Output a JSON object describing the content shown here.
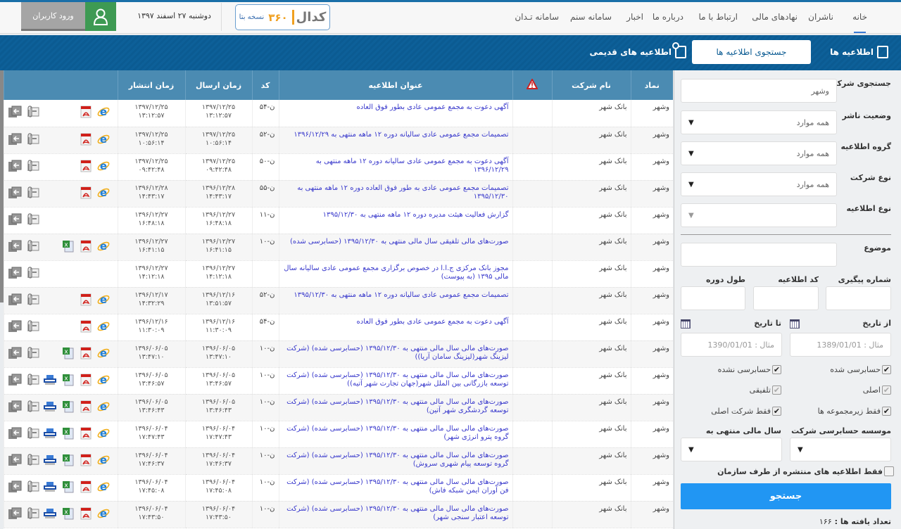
{
  "header": {
    "nav": [
      "خانه",
      "ناشران",
      "نهادهای مالی",
      "ارتباط با ما",
      "درباره ما",
      "اخبار",
      "سامانه سنم",
      "سامانه تـدان"
    ],
    "logo": {
      "brand": "کدال",
      "version": "۳۶۰",
      "beta": "نسخه بتا"
    },
    "date": "دوشنبه ۲۷ اسفند ۱۳۹۷",
    "login_label": "ورود کاربران"
  },
  "tabs": {
    "announcements": "اطلاعیه ها",
    "search": "جستجوی اطلاعیه ها",
    "old": "اطلاعیه های قدیمی"
  },
  "table": {
    "headers": {
      "symbol": "نماد",
      "company": "نام شرکت",
      "title": "عنوان اطلاعیه",
      "code": "کد",
      "sent": "زمان ارسال",
      "published": "زمان انتشار"
    },
    "rows": [
      {
        "symbol": "وشهر",
        "company": "بانک شهر",
        "title": "آگهی دعوت به مجمع عمومی عادی بطور فوق العاده",
        "code": "ن-۵۴",
        "sent": "۱۳۹۷/۱۲/۲۵ ۱۳:۱۲:۵۷",
        "published": "۱۳۹۷/۱۲/۲۵ ۱۳:۱۲:۵۷",
        "icons": [
          "ie",
          "pdf"
        ]
      },
      {
        "symbol": "وشهر",
        "company": "بانک شهر",
        "title": "تصمیمات مجمع عمومی عادی سالیانه دوره ۱۲ ماهه منتهی به ۱۳۹۶/۱۲/۲۹",
        "code": "ن-۵۲",
        "sent": "۱۳۹۷/۱۲/۲۵ ۱۰:۵۶:۱۴",
        "published": "۱۳۹۷/۱۲/۲۵ ۱۰:۵۶:۱۴",
        "icons": [
          "ie",
          "pdf"
        ]
      },
      {
        "symbol": "وشهر",
        "company": "بانک شهر",
        "title": "آگهی دعوت به مجمع عمومی عادی سالیانه دوره ۱۲ ماهه منتهی به ۱۳۹۶/۱۲/۲۹",
        "code": "ن-۵۰",
        "sent": "۱۳۹۷/۱۲/۲۵ ۰۹:۴۲:۴۸",
        "published": "۱۳۹۷/۱۲/۲۵ ۰۹:۴۲:۴۸",
        "icons": [
          "ie",
          "pdf"
        ]
      },
      {
        "symbol": "وشهر",
        "company": "بانک شهر",
        "title": "تصمیمات مجمع عمومی عادی به طور فوق العاده دوره ۱۲ ماهه منتهی به ۱۳۹۵/۱۲/۳۰",
        "code": "ن-۵۵",
        "sent": "۱۳۹۶/۱۲/۲۸ ۱۴:۴۳:۱۷",
        "published": "۱۳۹۶/۱۲/۲۸ ۱۴:۴۳:۱۷",
        "icons": [
          "ie",
          "pdf"
        ]
      },
      {
        "symbol": "وشهر",
        "company": "بانک شهر",
        "title": "گزارش فعالیت هیئت مدیره دوره ۱۲ ماهه منتهی به ۱۳۹۵/۱۲/۳۰",
        "code": "ن-۱۱",
        "sent": "۱۳۹۶/۱۲/۲۷ ۱۶:۴۸:۱۸",
        "published": "۱۳۹۶/۱۲/۲۷ ۱۶:۴۸:۱۸",
        "icons": []
      },
      {
        "symbol": "وشهر",
        "company": "بانک شهر",
        "title": "صورت‌های مالی تلفیقی سال مالی منتهی به ۱۳۹۵/۱۲/۳۰ (حسابرسی شده)",
        "code": "ن-۱۰",
        "sent": "۱۳۹۶/۱۲/۲۷ ۱۶:۴۱:۱۵",
        "published": "۱۳۹۶/۱۲/۲۷ ۱۶:۴۱:۱۵",
        "icons": [
          "ie",
          "pdf",
          "excel"
        ]
      },
      {
        "symbol": "وشهر",
        "company": "بانک شهر",
        "title": "مجوز بانک مرکزی ج.ا.ا در خصوص برگزاری مجمع عمومی عادی سالیانه سال مالی ۱۳۹۵ (به پیوست)",
        "code": "",
        "sent": "۱۳۹۶/۱۲/۲۷ ۱۴:۱۲:۱۸",
        "published": "۱۳۹۶/۱۲/۲۷ ۱۴:۱۲:۱۸",
        "icons": []
      },
      {
        "symbol": "وشهر",
        "company": "بانک شهر",
        "title": "تصمیمات مجمع عمومی عادی سالیانه دوره ۱۲ ماهه منتهی به ۱۳۹۵/۱۲/۳۰",
        "code": "ن-۵۲",
        "sent": "۱۳۹۶/۱۲/۱۶ ۱۳:۵۱:۵۷",
        "published": "۱۳۹۶/۱۲/۱۷ ۱۴:۳۲:۲۹",
        "icons": [
          "ie",
          "pdf"
        ]
      },
      {
        "symbol": "وشهر",
        "company": "بانک شهر",
        "title": "آگهی دعوت به مجمع عمومی عادی بطور فوق العاده",
        "code": "ن-۵۴",
        "sent": "۱۳۹۶/۱۲/۱۶ ۱۱:۳۰:۰۹",
        "published": "۱۳۹۶/۱۲/۱۶ ۱۱:۳۰:۰۹",
        "icons": [
          "ie",
          "pdf"
        ]
      },
      {
        "symbol": "وشهر",
        "company": "بانک شهر",
        "title": "صورت‌های مالی سال مالی منتهی به ۱۳۹۵/۱۲/۳۰ (حسابرسی شده) (شرکت لیزینگ شهر(لیزینگ سامان آریا))",
        "code": "ن-۱۰",
        "sent": "۱۳۹۶/۰۶/۰۵ ۱۳:۴۷:۱۰",
        "published": "۱۳۹۶/۰۶/۰۵ ۱۳:۴۷:۱۰",
        "icons": [
          "ie",
          "pdf",
          "excel"
        ]
      },
      {
        "symbol": "وشهر",
        "company": "بانک شهر",
        "title": "صورت‌های مالی سال مالی منتهی به ۱۳۹۵/۱۲/۳۰ (حسابرسی شده) (شرکت توسعه بازرگانی بین الملل شهر(جهان تجارت شهر آتیه))",
        "code": "ن-۱۰",
        "sent": "۱۳۹۶/۰۶/۰۵ ۱۳:۴۶:۵۷",
        "published": "۱۳۹۶/۰۶/۰۵ ۱۳:۴۶:۵۷",
        "icons": [
          "ie",
          "pdf",
          "excel",
          "xbrl"
        ]
      },
      {
        "symbol": "وشهر",
        "company": "بانک شهر",
        "title": "صورت‌های مالی سال مالی منتهی به ۱۳۹۵/۱۲/۳۰ (حسابرسی شده) (شرکت توسعه گردشگری شهر آتین)",
        "code": "ن-۱۰",
        "sent": "۱۳۹۶/۰۶/۰۵ ۱۳:۴۶:۴۳",
        "published": "۱۳۹۶/۰۶/۰۵ ۱۳:۴۶:۴۳",
        "icons": [
          "ie",
          "pdf",
          "excel",
          "xbrl"
        ]
      },
      {
        "symbol": "وشهر",
        "company": "بانک شهر",
        "title": "صورت‌های مالی سال مالی منتهی به ۱۳۹۵/۱۲/۳۰ (حسابرسی شده) (شرکت گروه پترو انرژی شهر)",
        "code": "ن-۱۰",
        "sent": "۱۳۹۶/۰۶/۰۴ ۱۷:۴۷:۴۳",
        "published": "۱۳۹۶/۰۶/۰۴ ۱۷:۴۷:۴۳",
        "icons": [
          "ie",
          "pdf",
          "excel",
          "xbrl"
        ]
      },
      {
        "symbol": "وشهر",
        "company": "بانک شهر",
        "title": "صورت‌های مالی سال مالی منتهی به ۱۳۹۵/۱۲/۳۰ (حسابرسی شده) (شرکت گروه توسعه پیام شهری سروش)",
        "code": "ن-۱۰",
        "sent": "۱۳۹۶/۰۶/۰۴ ۱۷:۴۶:۳۷",
        "published": "۱۳۹۶/۰۶/۰۴ ۱۷:۴۶:۳۷",
        "icons": [
          "ie",
          "pdf",
          "excel",
          "xbrl"
        ]
      },
      {
        "symbol": "وشهر",
        "company": "بانک شهر",
        "title": "صورت‌های مالی سال مالی منتهی به ۱۳۹۵/۱۲/۳۰ (حسابرسی شده) (شرکت فن آوران ایمن شبکه فاش)",
        "code": "ن-۱۰",
        "sent": "۱۳۹۶/۰۶/۰۴ ۱۷:۴۵:۰۸",
        "published": "۱۳۹۶/۰۶/۰۴ ۱۷:۴۵:۰۸",
        "icons": [
          "ie",
          "pdf",
          "excel",
          "xbrl"
        ]
      },
      {
        "symbol": "وشهر",
        "company": "بانک شهر",
        "title": "صورت‌های مالی سال مالی منتهی به ۱۳۹۵/۱۲/۳۰ (حسابرسی شده) (شرکت توسعه اعتبار سنجی شهر)",
        "code": "ن-۱۰",
        "sent": "۱۳۹۶/۰۶/۰۴ ۱۷:۴۳:۵۰",
        "published": "۱۳۹۶/۰۶/۰۴ ۱۷:۴۳:۵۰",
        "icons": [
          "ie",
          "pdf",
          "excel",
          "xbrl"
        ]
      }
    ]
  },
  "sidebar": {
    "company_search": {
      "label": "جستجوی شرکت",
      "value": "وشهر"
    },
    "publisher_status": {
      "label": "وضعیت ناشر",
      "value": "همه موارد"
    },
    "announcement_group": {
      "label": "گروه اطلاعیه",
      "value": "همه موارد"
    },
    "company_type": {
      "label": "نوع شرکت",
      "value": "همه موارد"
    },
    "announcement_type": {
      "label": "نوع اطلاعیه",
      "value": ""
    },
    "subject": {
      "label": "موضوع",
      "value": ""
    },
    "tracking_no": {
      "label": "شماره پیگیری"
    },
    "announcement_code": {
      "label": "کد اطلاعیه"
    },
    "period_length": {
      "label": "طول دوره"
    },
    "from_date": {
      "label": "از تاریخ",
      "placeholder": "مثال : 1389/01/01"
    },
    "to_date": {
      "label": "تا تاریخ",
      "placeholder": "مثال : 1390/01/01"
    },
    "checks": {
      "audited": {
        "label": "حسابرسی شده",
        "checked": true
      },
      "not_audited": {
        "label": "حسابرسی نشده",
        "checked": true
      },
      "original": {
        "label": "اصلی",
        "checked": true
      },
      "consolidated": {
        "label": "تلفیقی",
        "checked": true
      },
      "subsidiaries_only": {
        "label": "فقط زیرمجموعه ها",
        "checked": true
      },
      "parent_only": {
        "label": "فقط شرکت اصلی",
        "checked": true
      },
      "org_only": {
        "label": "فقط اطلاعیه های منتشره از طرف سازمان",
        "checked": false
      }
    },
    "audit_firm": {
      "label": "موسسه حسابرسی شرکت",
      "value": ""
    },
    "fiscal_year_end": {
      "label": "سال مالی منتهی به",
      "value": ""
    },
    "search_button": "جستجو",
    "result_count_label": "تعداد یافته ها :",
    "result_count": "۱۶۶"
  },
  "colors": {
    "brand_blue": "#0b5b92",
    "table_header": "#4b8bb2",
    "search_button": "#2196f3",
    "user_button": "#3e9a53",
    "link": "#3a3acc"
  }
}
